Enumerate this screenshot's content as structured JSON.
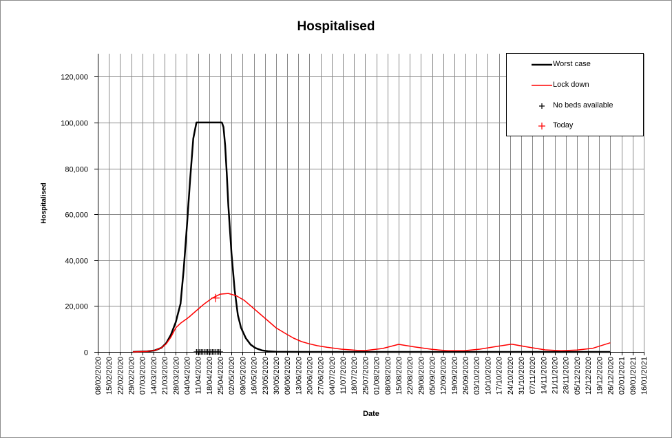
{
  "chart_data": {
    "type": "line",
    "title": "Hospitalised",
    "xlabel": "Date",
    "ylabel": "Hospitalised",
    "ylim": [
      0,
      130000
    ],
    "yticks": [
      0,
      20000,
      40000,
      60000,
      80000,
      100000,
      120000
    ],
    "ytick_labels": [
      "0",
      "20,000",
      "40,000",
      "60,000",
      "80,000",
      "100,000",
      "120,000"
    ],
    "xlim": [
      "2020-02-08",
      "2021-01-16"
    ],
    "xtick_labels": [
      "08/02/2020",
      "15/02/2020",
      "22/02/2020",
      "29/02/2020",
      "07/03/2020",
      "14/03/2020",
      "21/03/2020",
      "28/03/2020",
      "04/04/2020",
      "11/04/2020",
      "18/04/2020",
      "25/04/2020",
      "02/05/2020",
      "09/05/2020",
      "16/05/2020",
      "23/05/2020",
      "30/05/2020",
      "06/06/2020",
      "13/06/2020",
      "20/06/2020",
      "27/06/2020",
      "04/07/2020",
      "11/07/2020",
      "18/07/2020",
      "25/07/2020",
      "01/08/2020",
      "08/08/2020",
      "15/08/2020",
      "22/08/2020",
      "29/08/2020",
      "05/09/2020",
      "12/09/2020",
      "19/09/2020",
      "26/09/2020",
      "03/10/2020",
      "10/10/2020",
      "17/10/2020",
      "24/10/2020",
      "31/10/2020",
      "07/11/2020",
      "14/11/2020",
      "21/11/2020",
      "28/11/2020",
      "05/12/2020",
      "12/12/2020",
      "19/12/2020",
      "26/12/2020",
      "02/01/2021",
      "09/01/2021",
      "16/01/2021"
    ],
    "grid": true,
    "legend_position": "top-right",
    "series": [
      {
        "name": "Worst case",
        "color": "#000000",
        "style": "line",
        "x": [
          "2020-03-01",
          "2020-03-10",
          "2020-03-15",
          "2020-03-19",
          "2020-03-22",
          "2020-03-25",
          "2020-03-28",
          "2020-03-31",
          "2020-04-02",
          "2020-04-04",
          "2020-04-06",
          "2020-04-08",
          "2020-04-10",
          "2020-04-11",
          "2020-04-15",
          "2020-04-20",
          "2020-04-25",
          "2020-04-26",
          "2020-04-27",
          "2020-04-28",
          "2020-04-29",
          "2020-04-30",
          "2020-05-02",
          "2020-05-04",
          "2020-05-06",
          "2020-05-08",
          "2020-05-11",
          "2020-05-14",
          "2020-05-17",
          "2020-05-21",
          "2020-05-25",
          "2020-05-30",
          "2020-06-05",
          "2020-06-15",
          "2020-07-01",
          "2020-08-01",
          "2020-09-01",
          "2020-10-01",
          "2020-11-01",
          "2020-12-01",
          "2020-12-26"
        ],
        "y": [
          0,
          200,
          700,
          1800,
          3800,
          7500,
          13000,
          21000,
          36000,
          55000,
          75000,
          93000,
          100000,
          100000,
          100000,
          100000,
          100000,
          100000,
          98000,
          90000,
          78000,
          64000,
          43000,
          27000,
          16000,
          10500,
          6000,
          3200,
          1700,
          700,
          300,
          100,
          30,
          0,
          0,
          0,
          0,
          0,
          0,
          0,
          0
        ]
      },
      {
        "name": "Lock down",
        "color": "#ff0000",
        "style": "line",
        "x": [
          "2020-03-01",
          "2020-03-10",
          "2020-03-15",
          "2020-03-19",
          "2020-03-22",
          "2020-03-25",
          "2020-03-28",
          "2020-03-31",
          "2020-04-05",
          "2020-04-10",
          "2020-04-15",
          "2020-04-20",
          "2020-04-25",
          "2020-04-30",
          "2020-05-05",
          "2020-05-10",
          "2020-05-15",
          "2020-05-20",
          "2020-05-25",
          "2020-05-30",
          "2020-06-05",
          "2020-06-10",
          "2020-06-15",
          "2020-06-20",
          "2020-06-25",
          "2020-07-01",
          "2020-07-10",
          "2020-07-20",
          "2020-07-25",
          "2020-08-05",
          "2020-08-15",
          "2020-08-25",
          "2020-09-05",
          "2020-09-15",
          "2020-09-25",
          "2020-10-05",
          "2020-10-15",
          "2020-10-25",
          "2020-11-05",
          "2020-11-15",
          "2020-11-25",
          "2020-12-05",
          "2020-12-15",
          "2020-12-26"
        ],
        "y": [
          0,
          200,
          700,
          1800,
          3500,
          6500,
          10500,
          12500,
          15000,
          18000,
          21000,
          23500,
          25200,
          25500,
          24500,
          22500,
          19500,
          16500,
          13500,
          10500,
          8000,
          6000,
          4500,
          3500,
          2700,
          2000,
          1200,
          700,
          600,
          1500,
          3300,
          2200,
          1100,
          500,
          500,
          1200,
          2300,
          3400,
          2000,
          900,
          500,
          800,
          1600,
          4000
        ]
      },
      {
        "name": "No beds available",
        "color": "#000000",
        "style": "marker",
        "marker": "+",
        "x": [
          "2020-04-10",
          "2020-04-11",
          "2020-04-12",
          "2020-04-13",
          "2020-04-14",
          "2020-04-15",
          "2020-04-16",
          "2020-04-17",
          "2020-04-18",
          "2020-04-19",
          "2020-04-20",
          "2020-04-21",
          "2020-04-22",
          "2020-04-23",
          "2020-04-24",
          "2020-04-25"
        ],
        "y": [
          0,
          0,
          0,
          0,
          0,
          0,
          0,
          0,
          0,
          0,
          0,
          0,
          0,
          0,
          0,
          0
        ]
      },
      {
        "name": "Today",
        "color": "#ff0000",
        "style": "marker",
        "marker": "+",
        "x": [
          "2020-04-22"
        ],
        "y": [
          23500
        ]
      }
    ]
  }
}
